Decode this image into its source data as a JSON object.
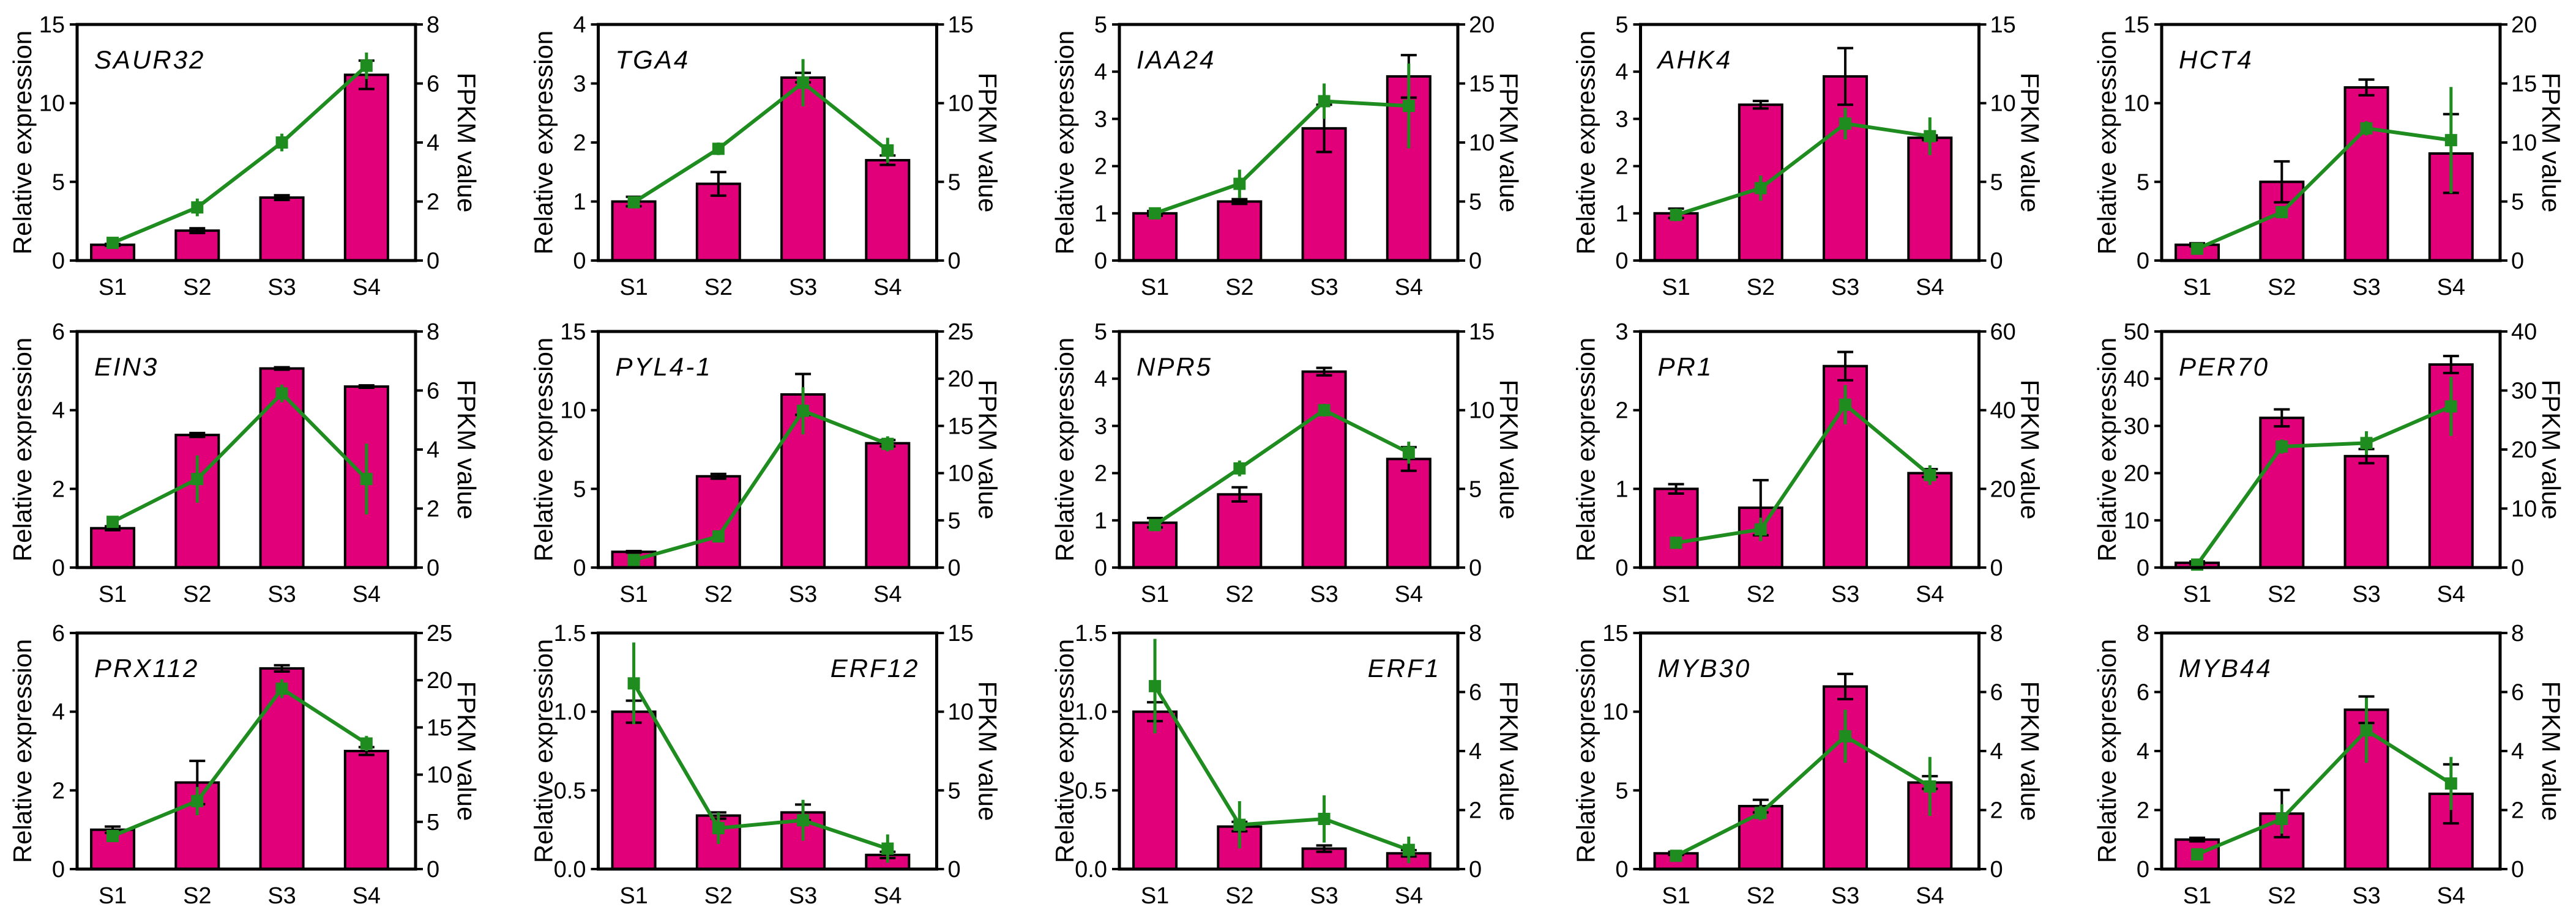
{
  "colors": {
    "bar_fill": "#E2007A",
    "line": "#1E8C1E",
    "axis": "#000000"
  },
  "chart_data": [
    {
      "type": "bar+line",
      "title": "SAUR32",
      "label_position": "top-left",
      "categories": [
        "S1",
        "S2",
        "S3",
        "S4"
      ],
      "ylabel": "Relative expression",
      "y2label": "FPKM value",
      "ylim": [
        0,
        15
      ],
      "yticks": [
        "0",
        "5",
        "10",
        "15"
      ],
      "y2lim": [
        0,
        8
      ],
      "y2ticks": [
        "0",
        "2",
        "4",
        "6",
        "8"
      ],
      "bars": {
        "values": [
          1.0,
          1.9,
          4.0,
          11.8
        ],
        "errors": [
          0.06,
          0.15,
          0.15,
          0.9
        ]
      },
      "line": {
        "values": [
          0.6,
          1.8,
          4.0,
          6.6
        ],
        "errors": [
          0.1,
          0.3,
          0.3,
          0.45
        ]
      }
    },
    {
      "type": "bar+line",
      "title": "TGA4",
      "label_position": "top-left",
      "categories": [
        "S1",
        "S2",
        "S3",
        "S4"
      ],
      "ylabel": "Relative expression",
      "y2label": "FPKM value",
      "ylim": [
        0,
        4
      ],
      "yticks": [
        "0",
        "1",
        "2",
        "3",
        "4"
      ],
      "y2lim": [
        0,
        15
      ],
      "y2ticks": [
        "0",
        "5",
        "10",
        "15"
      ],
      "bars": {
        "values": [
          1.0,
          1.3,
          3.1,
          1.7
        ],
        "errors": [
          0.08,
          0.2,
          0.08,
          0.08
        ]
      },
      "line": {
        "values": [
          3.7,
          7.1,
          11.3,
          7.0
        ],
        "errors": [
          0.3,
          0.4,
          1.5,
          0.8
        ]
      }
    },
    {
      "type": "bar+line",
      "title": "IAA24",
      "label_position": "top-left",
      "categories": [
        "S1",
        "S2",
        "S3",
        "S4"
      ],
      "ylabel": "Relative expression",
      "y2label": "FPKM value",
      "ylim": [
        0,
        5
      ],
      "yticks": [
        "0",
        "1",
        "2",
        "3",
        "4",
        "5"
      ],
      "y2lim": [
        0,
        20
      ],
      "y2ticks": [
        "0",
        "5",
        "10",
        "15",
        "20"
      ],
      "bars": {
        "values": [
          1.0,
          1.25,
          2.8,
          3.9
        ],
        "errors": [
          0.05,
          0.05,
          0.5,
          0.45
        ]
      },
      "line": {
        "values": [
          4.0,
          6.5,
          13.5,
          13.1
        ],
        "errors": [
          0.4,
          1.2,
          1.5,
          3.6
        ]
      }
    },
    {
      "type": "bar+line",
      "title": "AHK4",
      "label_position": "top-left",
      "categories": [
        "S1",
        "S2",
        "S3",
        "S4"
      ],
      "ylabel": "Relative expression",
      "y2label": "FPKM value",
      "ylim": [
        0,
        5
      ],
      "yticks": [
        "0",
        "1",
        "2",
        "3",
        "4",
        "5"
      ],
      "y2lim": [
        0,
        15
      ],
      "y2ticks": [
        "0",
        "5",
        "10",
        "15"
      ],
      "bars": {
        "values": [
          1.0,
          3.3,
          3.9,
          2.6
        ],
        "errors": [
          0.1,
          0.08,
          0.6,
          0.05
        ]
      },
      "line": {
        "values": [
          2.9,
          4.6,
          8.7,
          7.9
        ],
        "errors": [
          0.4,
          0.8,
          1.0,
          1.2
        ]
      }
    },
    {
      "type": "bar+line",
      "title": "HCT4",
      "label_position": "top-left",
      "categories": [
        "S1",
        "S2",
        "S3",
        "S4"
      ],
      "ylabel": "Relative expression",
      "y2label": "FPKM value",
      "ylim": [
        0,
        15
      ],
      "yticks": [
        "0",
        "5",
        "10",
        "15"
      ],
      "y2lim": [
        0,
        20
      ],
      "y2ticks": [
        "0",
        "5",
        "10",
        "15",
        "20"
      ],
      "bars": {
        "values": [
          1.0,
          5.0,
          11.0,
          6.8
        ],
        "errors": [
          0.1,
          1.3,
          0.5,
          2.5
        ]
      },
      "line": {
        "values": [
          1.0,
          4.1,
          11.2,
          10.2
        ],
        "errors": [
          0.2,
          0.5,
          0.6,
          4.5
        ]
      }
    },
    {
      "type": "bar+line",
      "title": "EIN3",
      "label_position": "top-left",
      "categories": [
        "S1",
        "S2",
        "S3",
        "S4"
      ],
      "ylabel": "Relative expression",
      "y2label": "FPKM value",
      "ylim": [
        0,
        6
      ],
      "yticks": [
        "0",
        "2",
        "4",
        "6"
      ],
      "y2lim": [
        0,
        8
      ],
      "y2ticks": [
        "0",
        "2",
        "4",
        "6",
        "8"
      ],
      "bars": {
        "values": [
          1.0,
          3.37,
          5.06,
          4.6
        ],
        "errors": [
          0.05,
          0.05,
          0.03,
          0.03
        ]
      },
      "line": {
        "values": [
          1.55,
          3.0,
          5.9,
          3.0
        ],
        "errors": [
          0.15,
          0.8,
          0.3,
          1.2
        ]
      }
    },
    {
      "type": "bar+line",
      "title": "PYL4-1",
      "label_position": "top-left",
      "categories": [
        "S1",
        "S2",
        "S3",
        "S4"
      ],
      "ylabel": "Relative expression",
      "y2label": "FPKM value",
      "ylim": [
        0,
        15
      ],
      "yticks": [
        "0",
        "5",
        "10",
        "15"
      ],
      "y2lim": [
        0,
        25
      ],
      "y2ticks": [
        "0",
        "5",
        "10",
        "15",
        "20",
        "25"
      ],
      "bars": {
        "values": [
          1.0,
          5.8,
          11.0,
          7.9
        ],
        "errors": [
          0.05,
          0.15,
          1.3,
          0.2
        ]
      },
      "line": {
        "values": [
          0.8,
          3.3,
          16.6,
          13.1
        ],
        "errors": [
          0.2,
          0.5,
          2.5,
          0.8
        ]
      }
    },
    {
      "type": "bar+line",
      "title": "NPR5",
      "label_position": "top-left",
      "categories": [
        "S1",
        "S2",
        "S3",
        "S4"
      ],
      "ylabel": "Relative expression",
      "y2label": "FPKM value",
      "ylim": [
        0,
        5
      ],
      "yticks": [
        "0",
        "1",
        "2",
        "3",
        "4",
        "5"
      ],
      "y2lim": [
        0,
        15
      ],
      "y2ticks": [
        "0",
        "5",
        "10",
        "15"
      ],
      "bars": {
        "values": [
          0.95,
          1.55,
          4.15,
          2.3
        ],
        "errors": [
          0.1,
          0.15,
          0.08,
          0.25
        ]
      },
      "line": {
        "values": [
          2.7,
          6.3,
          10.0,
          7.3
        ],
        "errors": [
          0.3,
          0.5,
          0.4,
          0.7
        ]
      }
    },
    {
      "type": "bar+line",
      "title": "PR1",
      "label_position": "top-left",
      "categories": [
        "S1",
        "S2",
        "S3",
        "S4"
      ],
      "ylabel": "Relative expression",
      "y2label": "FPKM value",
      "ylim": [
        0,
        3
      ],
      "yticks": [
        "0",
        "1",
        "2",
        "3"
      ],
      "y2lim": [
        0,
        60
      ],
      "y2ticks": [
        "0",
        "20",
        "40",
        "60"
      ],
      "bars": {
        "values": [
          1.0,
          0.76,
          2.56,
          1.2
        ],
        "errors": [
          0.06,
          0.35,
          0.18,
          0.05
        ]
      },
      "line": {
        "values": [
          6.3,
          9.7,
          41.4,
          23.5
        ],
        "errors": [
          0.5,
          3.0,
          5.0,
          2.5
        ]
      }
    },
    {
      "type": "bar+line",
      "title": "PER70",
      "label_position": "top-left",
      "categories": [
        "S1",
        "S2",
        "S3",
        "S4"
      ],
      "ylabel": "Relative expression",
      "y2label": "FPKM value",
      "ylim": [
        0,
        50
      ],
      "yticks": [
        "0",
        "10",
        "20",
        "30",
        "40",
        "50"
      ],
      "y2lim": [
        0,
        40
      ],
      "y2ticks": [
        "0",
        "10",
        "20",
        "30",
        "40"
      ],
      "bars": {
        "values": [
          1.0,
          31.7,
          23.6,
          43.0
        ],
        "errors": [
          0.3,
          1.8,
          1.5,
          1.8
        ]
      },
      "line": {
        "values": [
          0.5,
          20.5,
          21.1,
          27.3
        ],
        "errors": [
          0.5,
          1.2,
          2.0,
          5.0
        ]
      }
    },
    {
      "type": "bar+line",
      "title": "PRX112",
      "label_position": "top-left",
      "categories": [
        "S1",
        "S2",
        "S3",
        "S4"
      ],
      "ylabel": "Relative expression",
      "y2label": "FPKM value",
      "ylim": [
        0,
        6
      ],
      "yticks": [
        "0",
        "2",
        "4",
        "6"
      ],
      "y2lim": [
        0,
        25
      ],
      "y2ticks": [
        "0",
        "5",
        "10",
        "15",
        "20",
        "25"
      ],
      "bars": {
        "values": [
          1.0,
          2.2,
          5.1,
          3.0
        ],
        "errors": [
          0.08,
          0.55,
          0.08,
          0.1
        ]
      },
      "line": {
        "values": [
          3.5,
          7.2,
          19.1,
          13.3
        ],
        "errors": [
          0.4,
          1.5,
          1.0,
          0.8
        ]
      }
    },
    {
      "type": "bar+line",
      "title": "ERF12",
      "label_position": "top-right",
      "categories": [
        "S1",
        "S2",
        "S3",
        "S4"
      ],
      "ylabel": "Relative expression",
      "y2label": "FPKM value",
      "ylim": [
        0,
        1.5
      ],
      "yticks": [
        "0.0",
        "0.5",
        "1.0",
        "1.5"
      ],
      "y2lim": [
        0,
        15
      ],
      "y2ticks": [
        "0",
        "5",
        "10",
        "15"
      ],
      "bars": {
        "values": [
          1.0,
          0.34,
          0.36,
          0.09
        ],
        "errors": [
          0.07,
          0.02,
          0.05,
          0.02
        ]
      },
      "line": {
        "values": [
          11.8,
          2.6,
          3.1,
          1.3
        ],
        "errors": [
          2.6,
          1.0,
          1.3,
          0.9
        ]
      }
    },
    {
      "type": "bar+line",
      "title": "ERF1",
      "label_position": "top-right",
      "categories": [
        "S1",
        "S2",
        "S3",
        "S4"
      ],
      "ylabel": "Relative expression",
      "y2label": "FPKM value",
      "ylim": [
        0,
        1.5
      ],
      "yticks": [
        "0.0",
        "0.5",
        "1.0",
        "1.5"
      ],
      "y2lim": [
        0,
        8
      ],
      "y2ticks": [
        "0",
        "2",
        "4",
        "6",
        "8"
      ],
      "bars": {
        "values": [
          1.0,
          0.27,
          0.13,
          0.1
        ],
        "errors": [
          0.06,
          0.03,
          0.02,
          0.02
        ]
      },
      "line": {
        "values": [
          6.2,
          1.5,
          1.7,
          0.65
        ],
        "errors": [
          1.6,
          0.8,
          0.8,
          0.45
        ]
      }
    },
    {
      "type": "bar+line",
      "title": "MYB30",
      "label_position": "top-left",
      "categories": [
        "S1",
        "S2",
        "S3",
        "S4"
      ],
      "ylabel": "Relative expression",
      "y2label": "FPKM value",
      "ylim": [
        0,
        15
      ],
      "yticks": [
        "0",
        "5",
        "10",
        "15"
      ],
      "y2lim": [
        0,
        8
      ],
      "y2ticks": [
        "0",
        "2",
        "4",
        "6",
        "8"
      ],
      "bars": {
        "values": [
          1.0,
          4.0,
          11.6,
          5.5
        ],
        "errors": [
          0.1,
          0.4,
          0.8,
          0.4
        ]
      },
      "line": {
        "values": [
          0.45,
          1.9,
          4.5,
          2.8
        ],
        "errors": [
          0.15,
          0.25,
          0.9,
          1.0
        ]
      }
    },
    {
      "type": "bar+line",
      "title": "MYB44",
      "label_position": "top-left",
      "categories": [
        "S1",
        "S2",
        "S3",
        "S4"
      ],
      "ylabel": "Relative expression",
      "y2label": "FPKM value",
      "ylim": [
        0,
        8
      ],
      "yticks": [
        "0",
        "2",
        "4",
        "6",
        "8"
      ],
      "y2lim": [
        0,
        8
      ],
      "y2ticks": [
        "0",
        "2",
        "4",
        "6",
        "8"
      ],
      "bars": {
        "values": [
          1.0,
          1.88,
          5.4,
          2.55
        ],
        "errors": [
          0.06,
          0.8,
          0.45,
          1.0
        ]
      },
      "line": {
        "values": [
          0.5,
          1.7,
          4.7,
          2.9
        ],
        "errors": [
          0.15,
          0.5,
          1.1,
          0.9
        ]
      }
    }
  ]
}
